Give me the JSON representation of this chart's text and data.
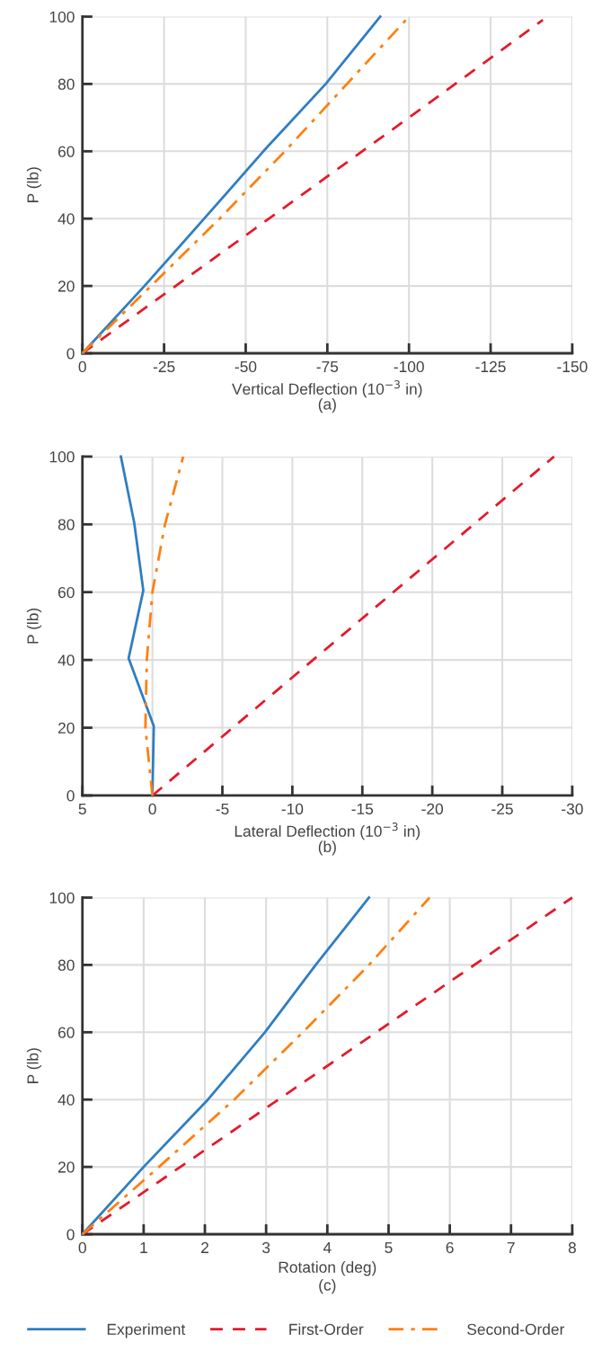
{
  "chart_data": [
    {
      "type": "line",
      "xlabel": "Vertical Deflection (10$^{−3}$ in)",
      "ylabel": "P (lb)",
      "annotations": [
        "(a)"
      ],
      "legend": "bottom",
      "xlim": [
        0,
        -150
      ],
      "xticks": [
        0,
        -25,
        -50,
        -75,
        -100,
        -125,
        -150
      ],
      "ylim": [
        0,
        100
      ],
      "yticks": [
        0,
        20,
        40,
        60,
        80,
        100
      ],
      "grid": true,
      "series": [
        {
          "name": "Experiment",
          "color": "#2f7ec1",
          "line_style": "solid",
          "x": [
            0,
            -19,
            -37.3,
            -55.4,
            -74.5,
            -91.2
          ],
          "values": [
            0,
            20,
            40,
            60,
            80,
            100
          ]
        },
        {
          "name": "First-Order",
          "color": "#e41a2b",
          "line_style": "dashed",
          "x": [
            0,
            -100,
            -141
          ],
          "values": [
            0,
            70,
            99
          ]
        },
        {
          "name": "Second-Order",
          "color": "#ff7f0e",
          "line_style": "dashdot",
          "x": [
            0,
            -21,
            -42,
            -62,
            -81,
            -100
          ],
          "values": [
            0,
            20,
            40,
            60,
            80,
            100
          ]
        }
      ]
    },
    {
      "type": "line",
      "xlabel": "Lateral Deflection (10$^{−3}$ in)",
      "ylabel": "P (lb)",
      "annotations": [
        "(b)"
      ],
      "legend": "bottom",
      "xlim": [
        5,
        -30
      ],
      "xticks": [
        5,
        0,
        -5,
        -10,
        -15,
        -20,
        -25,
        -30
      ],
      "ylim": [
        0,
        100
      ],
      "yticks": [
        0,
        20,
        40,
        60,
        80,
        100
      ],
      "grid": true,
      "series": [
        {
          "name": "Experiment",
          "color": "#2f7ec1",
          "line_style": "solid",
          "x": [
            0,
            -0.1,
            1.7,
            0.65,
            1.3,
            2.25
          ],
          "values": [
            0,
            20.5,
            40.5,
            60.5,
            80.5,
            100
          ]
        },
        {
          "name": "First-Order",
          "color": "#e41a2b",
          "line_style": "dashed",
          "x": [
            0,
            -28.7
          ],
          "values": [
            0,
            100
          ]
        },
        {
          "name": "Second-Order",
          "color": "#ff7f0e",
          "line_style": "dashdot",
          "x": [
            0,
            0.5,
            0.4,
            0,
            -0.9,
            -2.2
          ],
          "values": [
            0,
            20,
            40,
            60,
            80,
            100
          ]
        }
      ]
    },
    {
      "type": "line",
      "xlabel": "Rotation (deg)",
      "ylabel": "P (lb)",
      "annotations": [
        "(c)"
      ],
      "legend": "bottom",
      "xlim": [
        0,
        8
      ],
      "xticks": [
        0,
        1,
        2,
        3,
        4,
        5,
        6,
        7,
        8
      ],
      "ylim": [
        0,
        100
      ],
      "yticks": [
        0,
        20,
        40,
        60,
        80,
        100
      ],
      "grid": true,
      "series": [
        {
          "name": "Experiment",
          "color": "#2f7ec1",
          "line_style": "solid",
          "x": [
            0,
            1.0,
            2.05,
            2.98,
            3.81,
            4.68
          ],
          "values": [
            0,
            20,
            40,
            60,
            80,
            100
          ]
        },
        {
          "name": "First-Order",
          "color": "#e41a2b",
          "line_style": "dashed",
          "x": [
            0,
            8
          ],
          "values": [
            0,
            100
          ]
        },
        {
          "name": "Second-Order",
          "color": "#ff7f0e",
          "line_style": "dashdot",
          "x": [
            0,
            1.25,
            2.48,
            3.6,
            4.68,
            5.67
          ],
          "values": [
            0,
            20,
            40,
            60,
            80,
            100
          ]
        }
      ]
    }
  ]
}
